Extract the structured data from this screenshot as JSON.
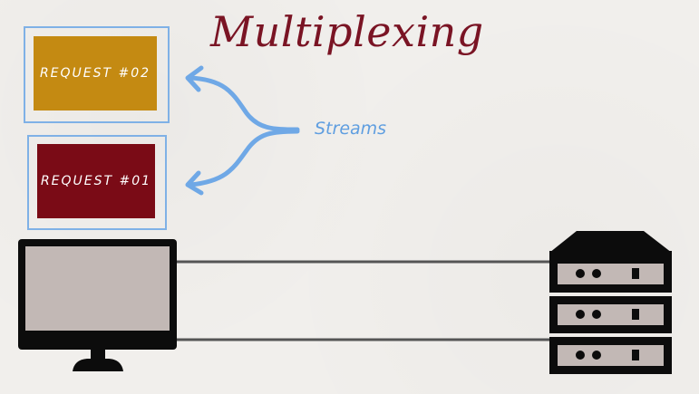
{
  "title": "Multiplexing",
  "streams_label": "Streams",
  "requests": [
    {
      "label": "REQUEST #02",
      "color": "#c48a12"
    },
    {
      "label": "REQUEST #01",
      "color": "#7a0b16"
    }
  ],
  "colors": {
    "stream_arrow": "#6fa8e6",
    "frame": "#7fb1e6",
    "title": "#7a1424",
    "device": "#0c0c0c",
    "screen": "#c2b8b5",
    "cable": "#555555"
  },
  "icons": {
    "client": "monitor-icon",
    "server": "server-rack-icon"
  }
}
